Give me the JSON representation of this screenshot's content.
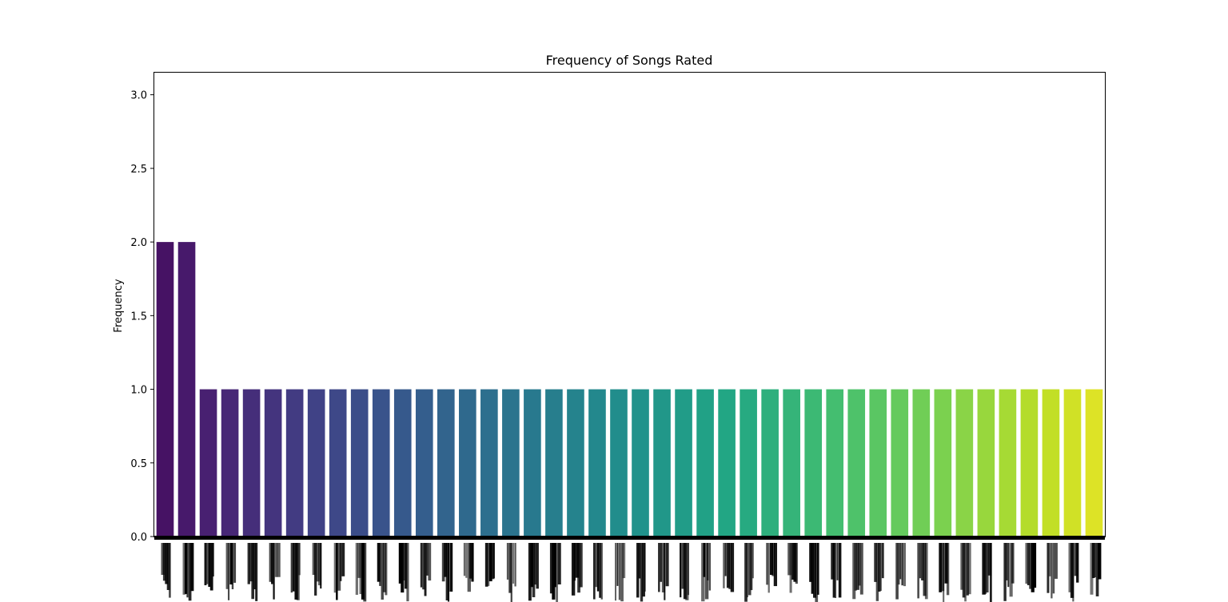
{
  "chart_data": {
    "type": "bar",
    "title": "Frequency of Songs Rated",
    "xlabel": "",
    "ylabel": "Frequency",
    "ylim": [
      0,
      3.15
    ],
    "yticks": [
      0.0,
      0.5,
      1.0,
      1.5,
      2.0,
      2.5,
      3.0
    ],
    "ytick_labels": [
      "0.0",
      "0.5",
      "1.0",
      "1.5",
      "2.0",
      "2.5",
      "3.0"
    ],
    "grid": false,
    "legend": "none",
    "colormap": "viridis",
    "x_tick_labels_legible": false,
    "values": [
      2,
      2,
      1,
      1,
      1,
      1,
      1,
      1,
      1,
      1,
      1,
      1,
      1,
      1,
      1,
      1,
      1,
      1,
      1,
      1,
      1,
      1,
      1,
      1,
      1,
      1,
      1,
      1,
      1,
      1,
      1,
      1,
      1,
      1,
      1,
      1,
      1,
      1,
      1,
      1,
      1,
      1,
      1,
      1
    ]
  }
}
